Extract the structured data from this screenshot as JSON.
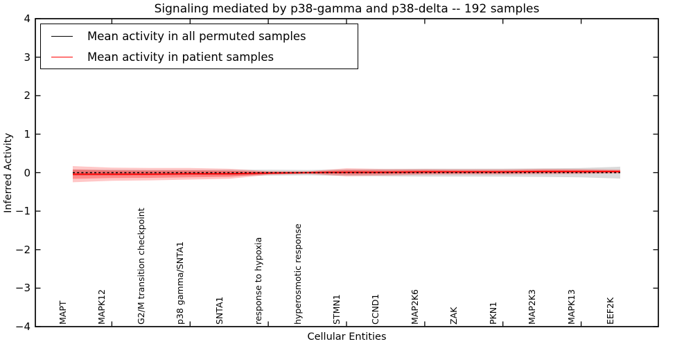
{
  "figure": {
    "background_color": "#ffffff",
    "frame_color": "#000000"
  },
  "legend": {
    "position": "upper left",
    "items": [
      {
        "label": "Mean activity in all permuted samples",
        "color": "#000000",
        "style": "solid"
      },
      {
        "label": "Mean activity in patient samples",
        "color": "#ff0000",
        "style": "solid"
      }
    ]
  },
  "chart_data": {
    "type": "line",
    "title": "Signaling mediated by p38-gamma and p38-delta -- 192 samples",
    "xlabel": "Cellular Entities",
    "ylabel": "Inferred Activity",
    "ylim": [
      -4,
      4
    ],
    "yticks": [
      4,
      3,
      2,
      1,
      0,
      -1,
      -2,
      -3,
      -4
    ],
    "yticklabels": [
      "4",
      "3",
      "2",
      "1",
      "0",
      "−1",
      "−2",
      "−3",
      "−4"
    ],
    "grid": false,
    "legend_position": "upper left",
    "categories": [
      "MAPT",
      "MAPK12",
      "G2/M transition checkpoint",
      "p38 gamma/SNTA1",
      "SNTA1",
      "response to hypoxia",
      "hyperosmotic response",
      "STMN1",
      "CCND1",
      "MAP2K6",
      "ZAK",
      "PKN1",
      "MAP2K3",
      "MAPK13",
      "EEF2K"
    ],
    "xtick_indices": [
      1,
      3,
      5,
      7,
      9,
      11,
      13
    ],
    "series": [
      {
        "name": "Mean activity in all permuted samples",
        "color": "#000000",
        "linestyle": "dashed",
        "values": [
          0.0,
          0.0,
          0.0,
          0.0,
          0.0,
          0.0,
          0.0,
          0.0,
          0.0,
          0.0,
          0.0,
          0.0,
          0.0,
          0.0,
          0.0
        ]
      },
      {
        "name": "Mean activity in patient samples",
        "color": "#ff0000",
        "linestyle": "solid",
        "values": [
          -0.04,
          -0.04,
          -0.04,
          -0.03,
          -0.03,
          -0.01,
          0.0,
          0.01,
          0.01,
          0.02,
          0.02,
          0.02,
          0.03,
          0.03,
          0.03
        ]
      }
    ],
    "bands": [
      {
        "name": "permuted-samples-spread-band",
        "series": 0,
        "color": "#9e9e9e",
        "opacity": 0.38,
        "halfwidths": [
          0.08,
          0.075,
          0.07,
          0.07,
          0.075,
          0.075,
          0.07,
          0.085,
          0.095,
          0.1,
          0.1,
          0.105,
          0.11,
          0.12,
          0.155
        ]
      },
      {
        "name": "patient-samples-outer-spread-band",
        "series": 1,
        "color": "#ff0000",
        "opacity": 0.22,
        "halfwidths": [
          0.21,
          0.17,
          0.16,
          0.15,
          0.13,
          0.05,
          0.035,
          0.105,
          0.085,
          0.075,
          0.07,
          0.07,
          0.07,
          0.065,
          0.05
        ]
      },
      {
        "name": "patient-samples-inner-spread-band",
        "series": 1,
        "color": "#ff0000",
        "opacity": 0.3,
        "halfwidths": [
          0.12,
          0.1,
          0.095,
          0.09,
          0.08,
          0.03,
          0.02,
          0.06,
          0.05,
          0.045,
          0.04,
          0.04,
          0.04,
          0.04,
          0.03
        ]
      }
    ]
  }
}
